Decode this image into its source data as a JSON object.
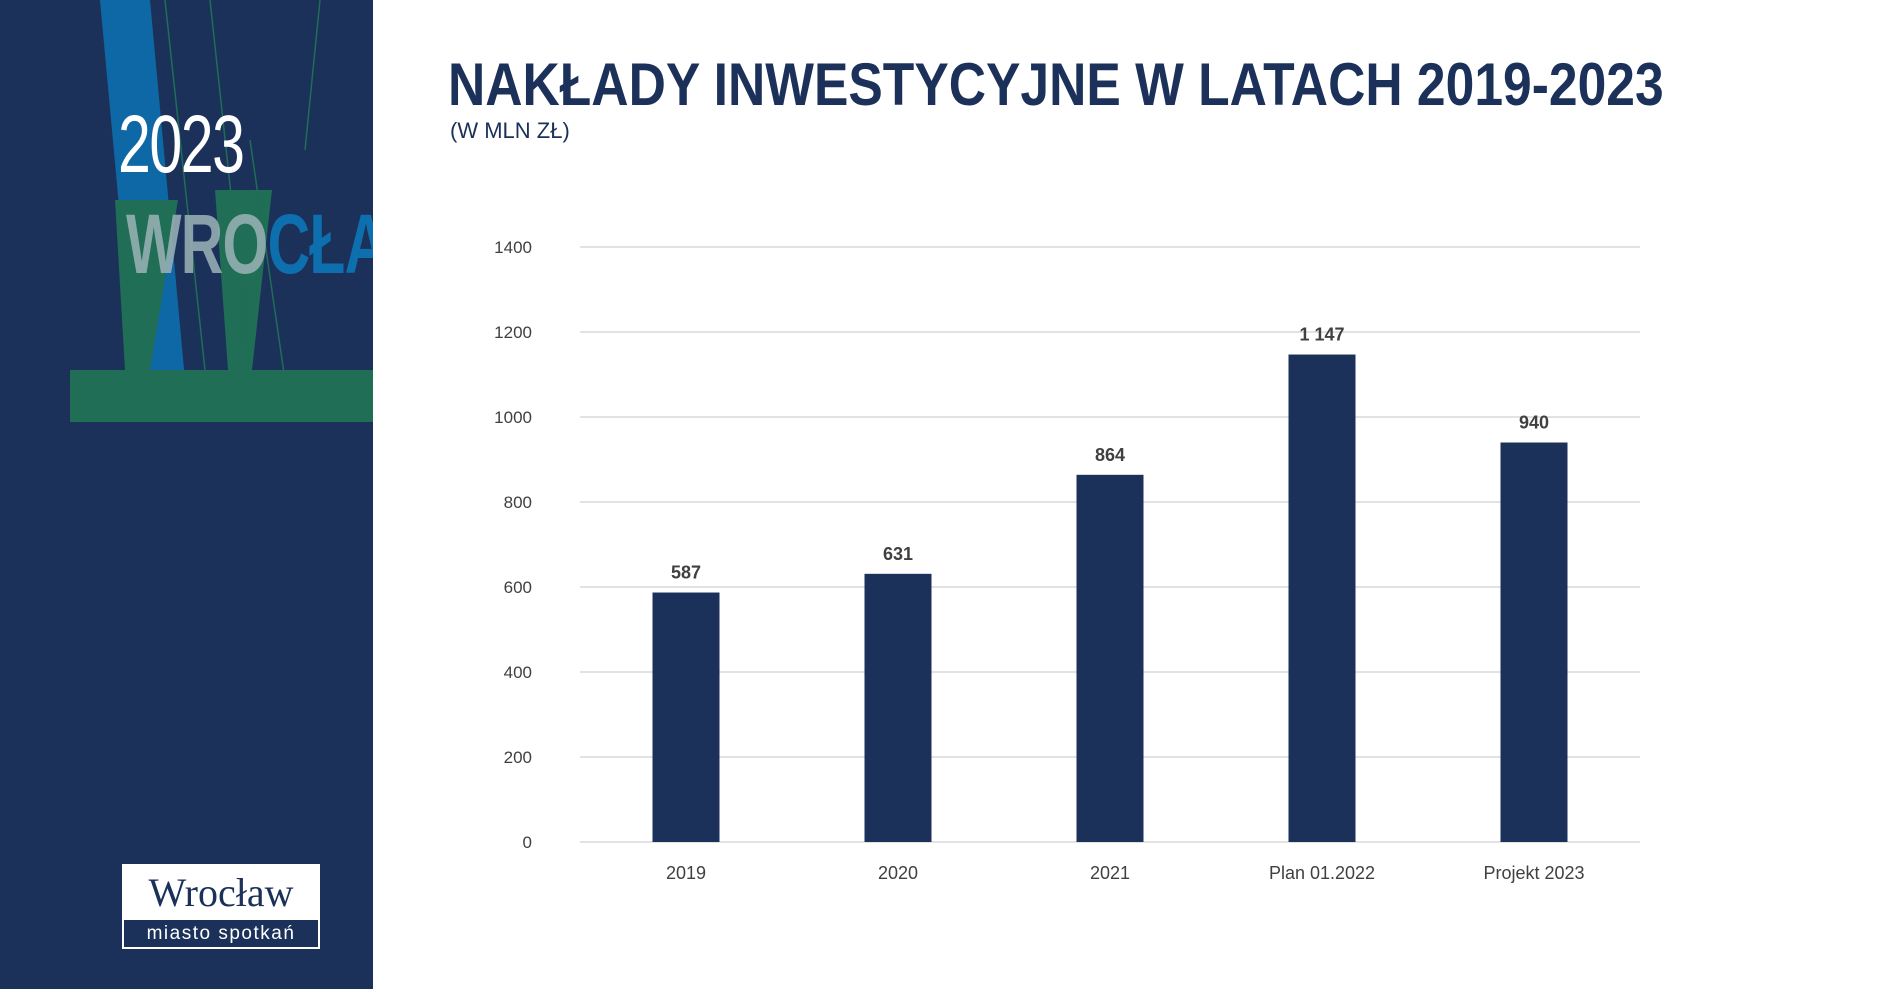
{
  "sidebar": {
    "year": "2023",
    "city": "WROCŁAW",
    "city_part1": "WRO",
    "city_part2": "CŁAW",
    "logo_name": "Wrocław",
    "logo_tagline": "miasto spotkań"
  },
  "colors": {
    "sidebar_bg": "#1b3159",
    "bar": "#1b3159",
    "accent_blue": "#0d6fae",
    "accent_green": "#1f6e55",
    "gridline": "#d0d0d0",
    "text": "#404040"
  },
  "chart_data": {
    "type": "bar",
    "title": "NAKŁADY INWESTYCYJNE W LATACH 2019-2023",
    "subtitle": "(W MLN ZŁ)",
    "categories": [
      "2019",
      "2020",
      "2021",
      "Plan 01.2022",
      "Projekt 2023"
    ],
    "values": [
      587,
      631,
      864,
      1147,
      940
    ],
    "value_labels": [
      "587",
      "631",
      "864",
      "1 147",
      "940"
    ],
    "ylim": [
      0,
      1400
    ],
    "yticks": [
      0,
      200,
      400,
      600,
      800,
      1000,
      1200,
      1400
    ],
    "grid": true,
    "legend": "none"
  }
}
